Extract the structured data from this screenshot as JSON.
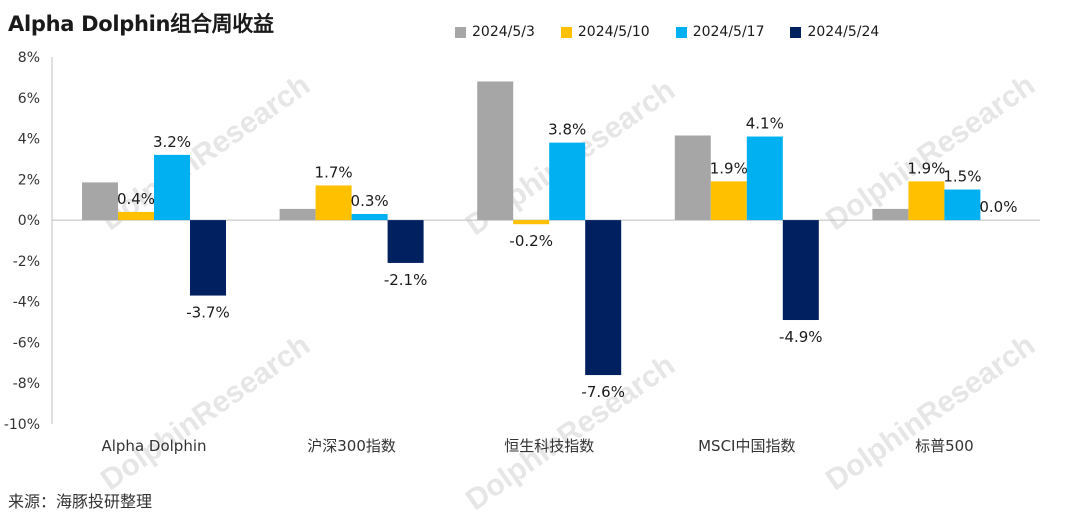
{
  "title": "Alpha Dolphin组合周收益",
  "source": "来源：海豚投研整理",
  "watermark": {
    "text": "DolphinResearch",
    "sub": "海豚投研"
  },
  "chart_data": {
    "type": "bar",
    "categories": [
      "Alpha Dolphin",
      "沪深300指数",
      "恒生科技指数",
      "MSCI中国指数",
      "标普500"
    ],
    "series": [
      {
        "name": "2024/5/3",
        "color": "#A6A6A6",
        "values": [
          1.85,
          0.55,
          6.8,
          4.15,
          0.55
        ],
        "labels": [
          "",
          "",
          "",
          "",
          ""
        ]
      },
      {
        "name": "2024/5/10",
        "color": "#FFC000",
        "values": [
          0.4,
          1.7,
          -0.2,
          1.9,
          1.9
        ],
        "labels": [
          "0.4%",
          "1.7%",
          "-0.2%",
          "1.9%",
          "1.9%"
        ]
      },
      {
        "name": "2024/5/17",
        "color": "#00B0F0",
        "values": [
          3.2,
          0.3,
          3.8,
          4.1,
          1.5
        ],
        "labels": [
          "3.2%",
          "0.3%",
          "3.8%",
          "4.1%",
          "1.5%"
        ]
      },
      {
        "name": "2024/5/24",
        "color": "#002060",
        "values": [
          -3.7,
          -2.1,
          -7.6,
          -4.9,
          0.0
        ],
        "labels": [
          "-3.7%",
          "-2.1%",
          "-7.6%",
          "-4.9%",
          "0.0%"
        ]
      }
    ],
    "ylim": [
      -10,
      8
    ],
    "yticks": [
      "-10%",
      "-8%",
      "-6%",
      "-4%",
      "-2%",
      "0%",
      "2%",
      "4%",
      "6%",
      "8%"
    ],
    "legend_position": "top"
  }
}
